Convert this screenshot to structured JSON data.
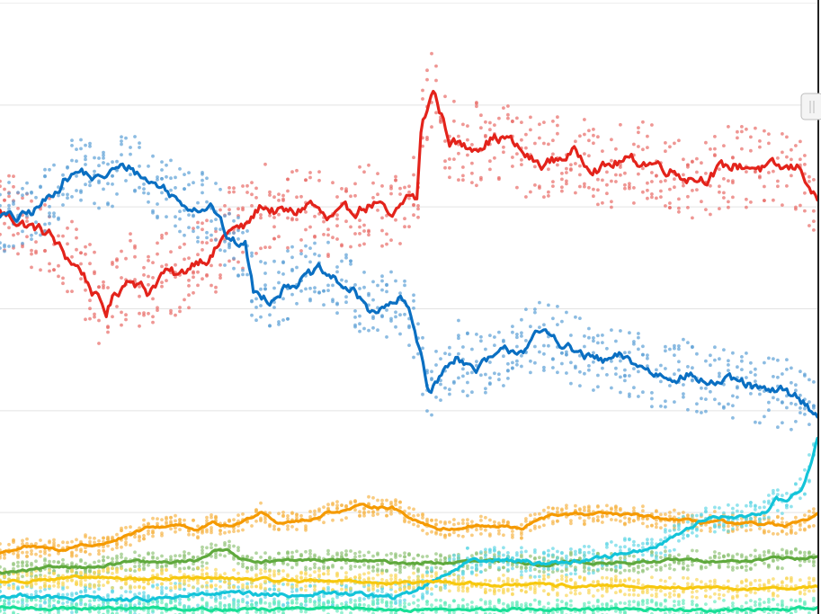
{
  "chart_data": {
    "type": "line",
    "title": "",
    "xlabel": "",
    "ylabel": "",
    "x_range": [
      0,
      100
    ],
    "ylim": [
      0,
      42
    ],
    "y_gridlines": [
      7,
      14,
      21,
      28,
      35
    ],
    "grid": true,
    "legend": "none",
    "scatter_points_shown": true,
    "series": [
      {
        "color": "#e3231b",
        "dot_color": "#e86b66",
        "knots": [
          [
            0,
            27.6
          ],
          [
            3,
            26.8
          ],
          [
            6,
            26.1
          ],
          [
            8,
            24.6
          ],
          [
            10,
            23.6
          ],
          [
            12,
            21.5
          ],
          [
            13,
            20.7
          ],
          [
            14,
            21.9
          ],
          [
            16,
            23.3
          ],
          [
            18,
            22.1
          ],
          [
            20,
            23.5
          ],
          [
            22,
            23.1
          ],
          [
            24,
            24.4
          ],
          [
            26,
            24.7
          ],
          [
            28,
            26.4
          ],
          [
            30,
            26.5
          ],
          [
            32,
            28.1
          ],
          [
            34,
            27.6
          ],
          [
            36,
            27.5
          ],
          [
            38,
            28.3
          ],
          [
            40,
            27.0
          ],
          [
            42,
            27.4
          ],
          [
            44,
            27.9
          ],
          [
            46,
            28.3
          ],
          [
            48,
            26.9
          ],
          [
            50,
            28.8
          ],
          [
            51,
            28.5
          ],
          [
            51.6,
            33.6
          ],
          [
            53,
            36.0
          ],
          [
            55,
            32.6
          ],
          [
            57,
            32.0
          ],
          [
            60,
            32.7
          ],
          [
            62,
            32.7
          ],
          [
            64,
            31.6
          ],
          [
            66,
            30.8
          ],
          [
            68,
            31.2
          ],
          [
            70,
            31.7
          ],
          [
            72,
            31.0
          ],
          [
            74,
            30.7
          ],
          [
            76,
            31.1
          ],
          [
            78,
            31.1
          ],
          [
            80,
            31.0
          ],
          [
            82,
            30.6
          ],
          [
            84,
            30.1
          ],
          [
            86,
            30.0
          ],
          [
            88,
            30.5
          ],
          [
            90,
            30.8
          ],
          [
            92,
            30.8
          ],
          [
            94,
            30.6
          ],
          [
            96,
            30.5
          ],
          [
            98,
            30.7
          ],
          [
            99,
            29.5
          ],
          [
            100,
            28.3
          ]
        ]
      },
      {
        "color": "#0a6fc2",
        "dot_color": "#5b9fd6",
        "knots": [
          [
            0,
            27.5
          ],
          [
            2,
            27.1
          ],
          [
            4,
            27.6
          ],
          [
            6,
            28.6
          ],
          [
            8,
            30.0
          ],
          [
            10,
            30.4
          ],
          [
            12,
            29.8
          ],
          [
            14,
            30.5
          ],
          [
            16,
            30.7
          ],
          [
            18,
            29.8
          ],
          [
            20,
            29.3
          ],
          [
            22,
            28.3
          ],
          [
            24,
            28.0
          ],
          [
            26,
            28.1
          ],
          [
            28,
            25.6
          ],
          [
            30,
            25.4
          ],
          [
            31,
            22.1
          ],
          [
            33,
            21.7
          ],
          [
            35,
            22.6
          ],
          [
            37,
            23.0
          ],
          [
            39,
            23.5
          ],
          [
            41,
            22.9
          ],
          [
            43,
            22.2
          ],
          [
            45,
            21.0
          ],
          [
            47,
            20.9
          ],
          [
            49,
            21.6
          ],
          [
            50,
            20.8
          ],
          [
            51.5,
            18.0
          ],
          [
            52.5,
            15.3
          ],
          [
            54,
            16.4
          ],
          [
            56,
            17.9
          ],
          [
            58,
            16.7
          ],
          [
            60,
            17.4
          ],
          [
            62,
            18.0
          ],
          [
            64,
            18.3
          ],
          [
            66,
            19.2
          ],
          [
            68,
            19.0
          ],
          [
            70,
            18.1
          ],
          [
            72,
            17.6
          ],
          [
            74,
            17.3
          ],
          [
            76,
            17.6
          ],
          [
            78,
            17.1
          ],
          [
            80,
            16.5
          ],
          [
            82,
            16.4
          ],
          [
            84,
            16.5
          ],
          [
            86,
            16.0
          ],
          [
            88,
            15.9
          ],
          [
            90,
            15.9
          ],
          [
            92,
            15.6
          ],
          [
            94,
            15.1
          ],
          [
            96,
            15.4
          ],
          [
            98,
            14.7
          ],
          [
            100,
            13.7
          ]
        ]
      },
      {
        "color": "#f59a00",
        "dot_color": "#f7b64c",
        "knots": [
          [
            0,
            4.2
          ],
          [
            3,
            4.6
          ],
          [
            6,
            4.5
          ],
          [
            8,
            4.4
          ],
          [
            10,
            4.8
          ],
          [
            12,
            4.7
          ],
          [
            14,
            5.1
          ],
          [
            16,
            5.4
          ],
          [
            18,
            5.9
          ],
          [
            20,
            6.0
          ],
          [
            22,
            6.2
          ],
          [
            24,
            5.7
          ],
          [
            26,
            6.2
          ],
          [
            28,
            6.0
          ],
          [
            30,
            6.4
          ],
          [
            32,
            7.1
          ],
          [
            34,
            6.3
          ],
          [
            36,
            6.4
          ],
          [
            38,
            6.4
          ],
          [
            40,
            7.0
          ],
          [
            42,
            7.1
          ],
          [
            44,
            7.4
          ],
          [
            46,
            7.4
          ],
          [
            48,
            7.3
          ],
          [
            50,
            6.7
          ],
          [
            52,
            6.2
          ],
          [
            54,
            5.8
          ],
          [
            56,
            5.9
          ],
          [
            58,
            6.1
          ],
          [
            60,
            6.0
          ],
          [
            62,
            6.0
          ],
          [
            64,
            5.8
          ],
          [
            66,
            6.6
          ],
          [
            68,
            6.8
          ],
          [
            70,
            6.9
          ],
          [
            72,
            6.8
          ],
          [
            74,
            6.9
          ],
          [
            76,
            6.8
          ],
          [
            78,
            6.8
          ],
          [
            80,
            6.6
          ],
          [
            82,
            6.5
          ],
          [
            84,
            6.4
          ],
          [
            86,
            6.3
          ],
          [
            88,
            6.4
          ],
          [
            90,
            6.1
          ],
          [
            92,
            6.2
          ],
          [
            94,
            6.2
          ],
          [
            96,
            6.0
          ],
          [
            98,
            6.3
          ],
          [
            100,
            6.8
          ]
        ]
      },
      {
        "color": "#5fa93d",
        "dot_color": "#93c47a",
        "knots": [
          [
            0,
            2.8
          ],
          [
            4,
            3.0
          ],
          [
            8,
            3.3
          ],
          [
            12,
            3.2
          ],
          [
            16,
            3.6
          ],
          [
            20,
            3.5
          ],
          [
            24,
            3.7
          ],
          [
            26,
            4.3
          ],
          [
            28,
            4.4
          ],
          [
            30,
            3.7
          ],
          [
            34,
            3.6
          ],
          [
            38,
            3.7
          ],
          [
            42,
            3.7
          ],
          [
            46,
            3.6
          ],
          [
            50,
            3.5
          ],
          [
            54,
            3.5
          ],
          [
            58,
            3.6
          ],
          [
            62,
            3.6
          ],
          [
            66,
            3.4
          ],
          [
            70,
            3.6
          ],
          [
            74,
            3.5
          ],
          [
            78,
            3.5
          ],
          [
            82,
            3.7
          ],
          [
            86,
            3.7
          ],
          [
            90,
            3.6
          ],
          [
            94,
            3.8
          ],
          [
            98,
            3.8
          ],
          [
            100,
            3.9
          ]
        ]
      },
      {
        "color": "#13c4d9",
        "dot_color": "#64d7e6",
        "knots": [
          [
            0,
            1.2
          ],
          [
            4,
            1.3
          ],
          [
            8,
            1.0
          ],
          [
            12,
            1.1
          ],
          [
            16,
            0.9
          ],
          [
            20,
            1.1
          ],
          [
            24,
            1.3
          ],
          [
            28,
            1.4
          ],
          [
            32,
            1.3
          ],
          [
            36,
            1.3
          ],
          [
            40,
            1.4
          ],
          [
            44,
            1.4
          ],
          [
            48,
            1.1
          ],
          [
            50,
            1.4
          ],
          [
            54,
            2.6
          ],
          [
            58,
            3.8
          ],
          [
            62,
            3.7
          ],
          [
            66,
            3.5
          ],
          [
            70,
            3.6
          ],
          [
            74,
            3.9
          ],
          [
            78,
            4.4
          ],
          [
            80,
            4.5
          ],
          [
            82,
            5.2
          ],
          [
            84,
            5.9
          ],
          [
            86,
            6.4
          ],
          [
            88,
            6.7
          ],
          [
            90,
            6.6
          ],
          [
            92,
            6.8
          ],
          [
            94,
            7.2
          ],
          [
            95,
            8.0
          ],
          [
            96,
            7.7
          ],
          [
            98,
            8.5
          ],
          [
            99,
            10.0
          ],
          [
            100,
            12.1
          ]
        ]
      },
      {
        "color": "#f7c80f",
        "dot_color": "#fad75a",
        "knots": [
          [
            0,
            2.2
          ],
          [
            6,
            2.4
          ],
          [
            12,
            2.5
          ],
          [
            18,
            2.4
          ],
          [
            24,
            2.5
          ],
          [
            30,
            2.4
          ],
          [
            36,
            2.3
          ],
          [
            42,
            2.3
          ],
          [
            48,
            2.1
          ],
          [
            54,
            2.2
          ],
          [
            60,
            2.0
          ],
          [
            66,
            2.0
          ],
          [
            72,
            1.9
          ],
          [
            78,
            1.9
          ],
          [
            84,
            1.8
          ],
          [
            90,
            1.7
          ],
          [
            96,
            1.8
          ],
          [
            100,
            1.9
          ]
        ]
      },
      {
        "color": "#1adf98",
        "dot_color": "#6aebbd",
        "knots": [
          [
            0,
            0.4
          ],
          [
            10,
            0.4
          ],
          [
            20,
            0.4
          ],
          [
            30,
            0.3
          ],
          [
            40,
            0.4
          ],
          [
            50,
            0.3
          ],
          [
            60,
            0.3
          ],
          [
            70,
            0.3
          ],
          [
            80,
            0.3
          ],
          [
            90,
            0.3
          ],
          [
            100,
            0.4
          ]
        ]
      }
    ]
  }
}
